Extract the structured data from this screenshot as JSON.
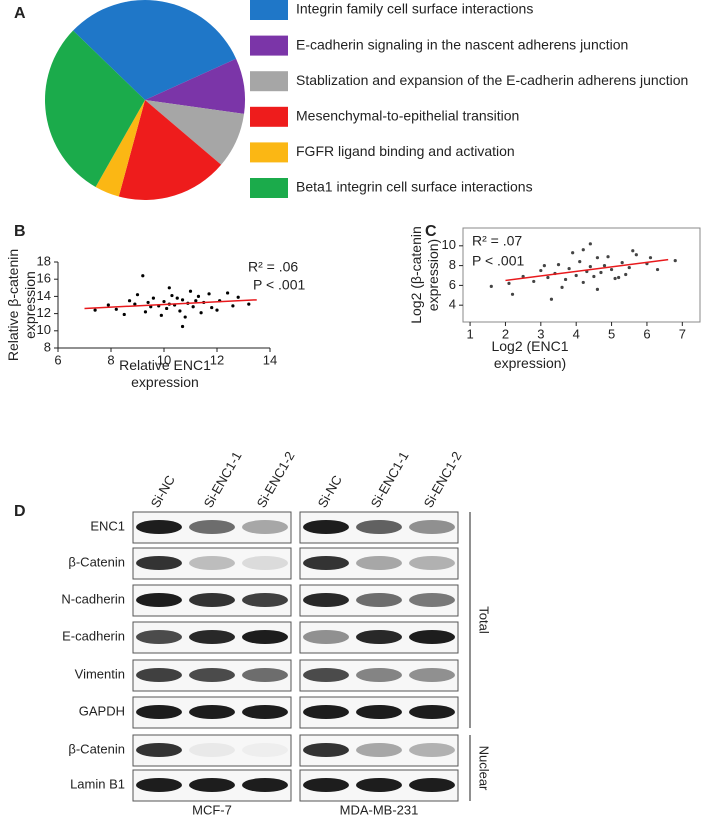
{
  "panel_labels": [
    "A",
    "B",
    "C",
    "D"
  ],
  "chart_data": [
    {
      "type": "pie",
      "categories": [
        "Integrin family cell surface interactions",
        "E-cadherin signaling in the nascent adherens junction",
        "Stablization and expansion of the E-cadherin adherens junction",
        "Mesenchymal-to-epithelial transition",
        "FGFR ligand binding and activation",
        "Beta1 integrin cell surface interactions"
      ],
      "values": [
        31,
        9,
        9,
        18,
        4,
        29
      ],
      "colors": [
        "#1f77c8",
        "#7b35a8",
        "#a6a6a6",
        "#ee1c1c",
        "#fbb714",
        "#1bab4b"
      ]
    },
    {
      "type": "scatter",
      "x_label": "Relative ENC1 expression",
      "y_label": "Relative β-catenin expression",
      "annotations": [
        "R² = .06",
        "P < .001"
      ],
      "xlim": [
        6,
        14
      ],
      "xticks": [
        6,
        8,
        10,
        12,
        14
      ],
      "ylim": [
        8,
        18
      ],
      "yticks": [
        8,
        10,
        12,
        14,
        16,
        18
      ],
      "frame": false,
      "point_color": "#000000",
      "x": [
        8.2,
        8.9,
        9.3,
        9.6,
        9.8,
        10.0,
        10.1,
        10.3,
        10.4,
        10.6,
        10.7,
        10.9,
        11.1,
        11.3,
        11.5,
        11.8,
        12.1,
        12.4,
        12.8,
        13.2,
        7.4,
        7.9,
        8.5,
        9.0,
        9.5,
        9.9,
        10.2,
        10.5,
        10.8,
        11.0,
        11.4,
        11.7,
        12.0,
        12.6,
        9.2,
        10.7,
        8.7,
        9.4,
        10.2,
        11.2
      ],
      "y": [
        12.5,
        13.1,
        12.2,
        13.8,
        12.9,
        13.4,
        12.6,
        14.1,
        13.0,
        12.3,
        13.6,
        13.2,
        12.8,
        14.0,
        13.3,
        12.7,
        13.5,
        14.4,
        13.9,
        13.1,
        12.4,
        13.0,
        11.9,
        14.2,
        12.8,
        11.8,
        15.0,
        13.8,
        11.6,
        14.6,
        12.1,
        14.3,
        12.4,
        12.9,
        16.4,
        10.5,
        13.5,
        13.3,
        13.1,
        13.5
      ],
      "fit": {
        "x": [
          7,
          13.5
        ],
        "y": [
          12.6,
          13.6
        ],
        "color": "#e8191c"
      }
    },
    {
      "type": "scatter",
      "x_label": "Log2 (ENC1 expression)",
      "y_label": "Log2 (β-catenin expression)",
      "annotations": [
        "R² = .07",
        "P < .001"
      ],
      "xlim": [
        0.8,
        7.5
      ],
      "xticks": [
        1,
        2,
        3,
        4,
        5,
        6,
        7
      ],
      "ylim": [
        2.3,
        11.8
      ],
      "yticks": [
        4,
        6,
        8,
        10
      ],
      "frame": true,
      "point_color": "#444444",
      "x": [
        2.1,
        2.5,
        2.8,
        3.0,
        3.2,
        3.4,
        3.5,
        3.7,
        3.8,
        4.0,
        4.1,
        4.2,
        4.3,
        4.4,
        4.5,
        4.6,
        4.7,
        4.8,
        5.0,
        5.1,
        5.3,
        5.5,
        5.7,
        6.0,
        6.3,
        6.8,
        1.6,
        2.2,
        3.1,
        3.6,
        3.9,
        4.2,
        4.6,
        4.9,
        5.2,
        5.6,
        6.1,
        3.3,
        4.4,
        5.4
      ],
      "y": [
        6.2,
        6.9,
        6.4,
        7.5,
        6.8,
        7.2,
        8.1,
        6.6,
        7.7,
        7.0,
        8.4,
        6.3,
        7.4,
        7.9,
        6.9,
        8.8,
        7.3,
        8.0,
        7.6,
        6.7,
        8.3,
        7.8,
        9.1,
        8.2,
        7.6,
        8.5,
        5.9,
        5.1,
        8.0,
        5.8,
        9.3,
        9.6,
        5.6,
        8.9,
        6.8,
        9.5,
        8.8,
        4.6,
        10.2,
        7.1
      ],
      "fit": {
        "x": [
          2,
          6.6
        ],
        "y": [
          6.5,
          8.6
        ],
        "color": "#e8191c"
      }
    }
  ],
  "western_blot": {
    "lanes": [
      "Si-NC",
      "Si-ENC1-1",
      "Si-ENC1-2"
    ],
    "cell_lines": [
      "MCF-7",
      "MDA-MB-231"
    ],
    "rows": [
      "ENC1",
      "β-Catenin",
      "N-cadherin",
      "E-cadherin",
      "Vimentin",
      "GAPDH",
      "β-Catenin",
      "Lamin B1"
    ],
    "fractions": [
      "Total",
      "Nuclear"
    ]
  }
}
